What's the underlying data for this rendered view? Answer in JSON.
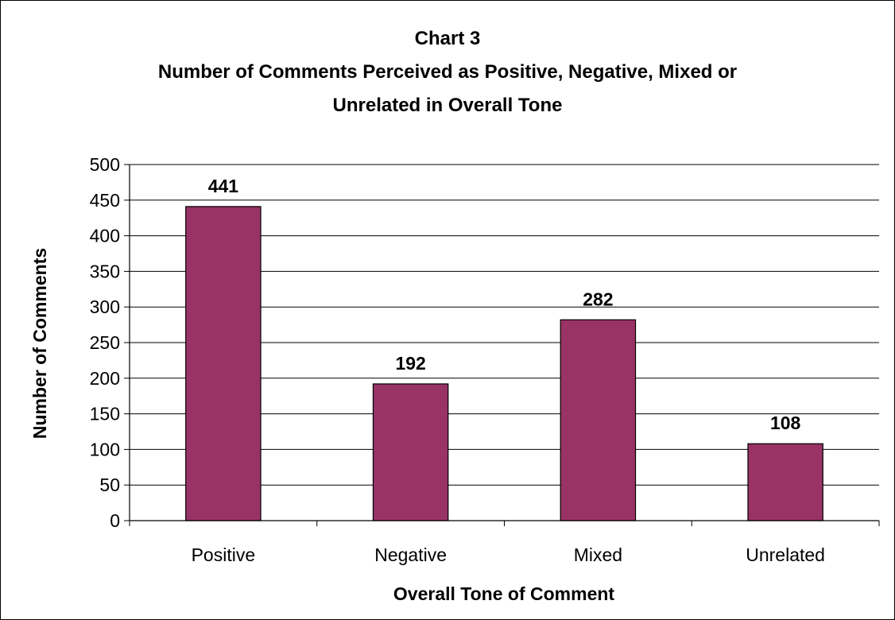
{
  "chart_data": {
    "type": "bar",
    "title_lines": [
      "Chart 3",
      "Number of Comments Perceived as Positive, Negative, Mixed or",
      "Unrelated in Overall Tone"
    ],
    "xlabel": "Overall Tone of Comment",
    "ylabel": "Number of Comments",
    "categories": [
      "Positive",
      "Negative",
      "Mixed",
      "Unrelated"
    ],
    "values": [
      441,
      192,
      282,
      108
    ],
    "data_labels": [
      "441",
      "192",
      "282",
      "108"
    ],
    "yticks": [
      "0",
      "50",
      "100",
      "150",
      "200",
      "250",
      "300",
      "350",
      "400",
      "450",
      "500"
    ],
    "ylim": [
      0,
      500
    ],
    "grid": true,
    "legend": "none",
    "bar_color": "#993366"
  }
}
